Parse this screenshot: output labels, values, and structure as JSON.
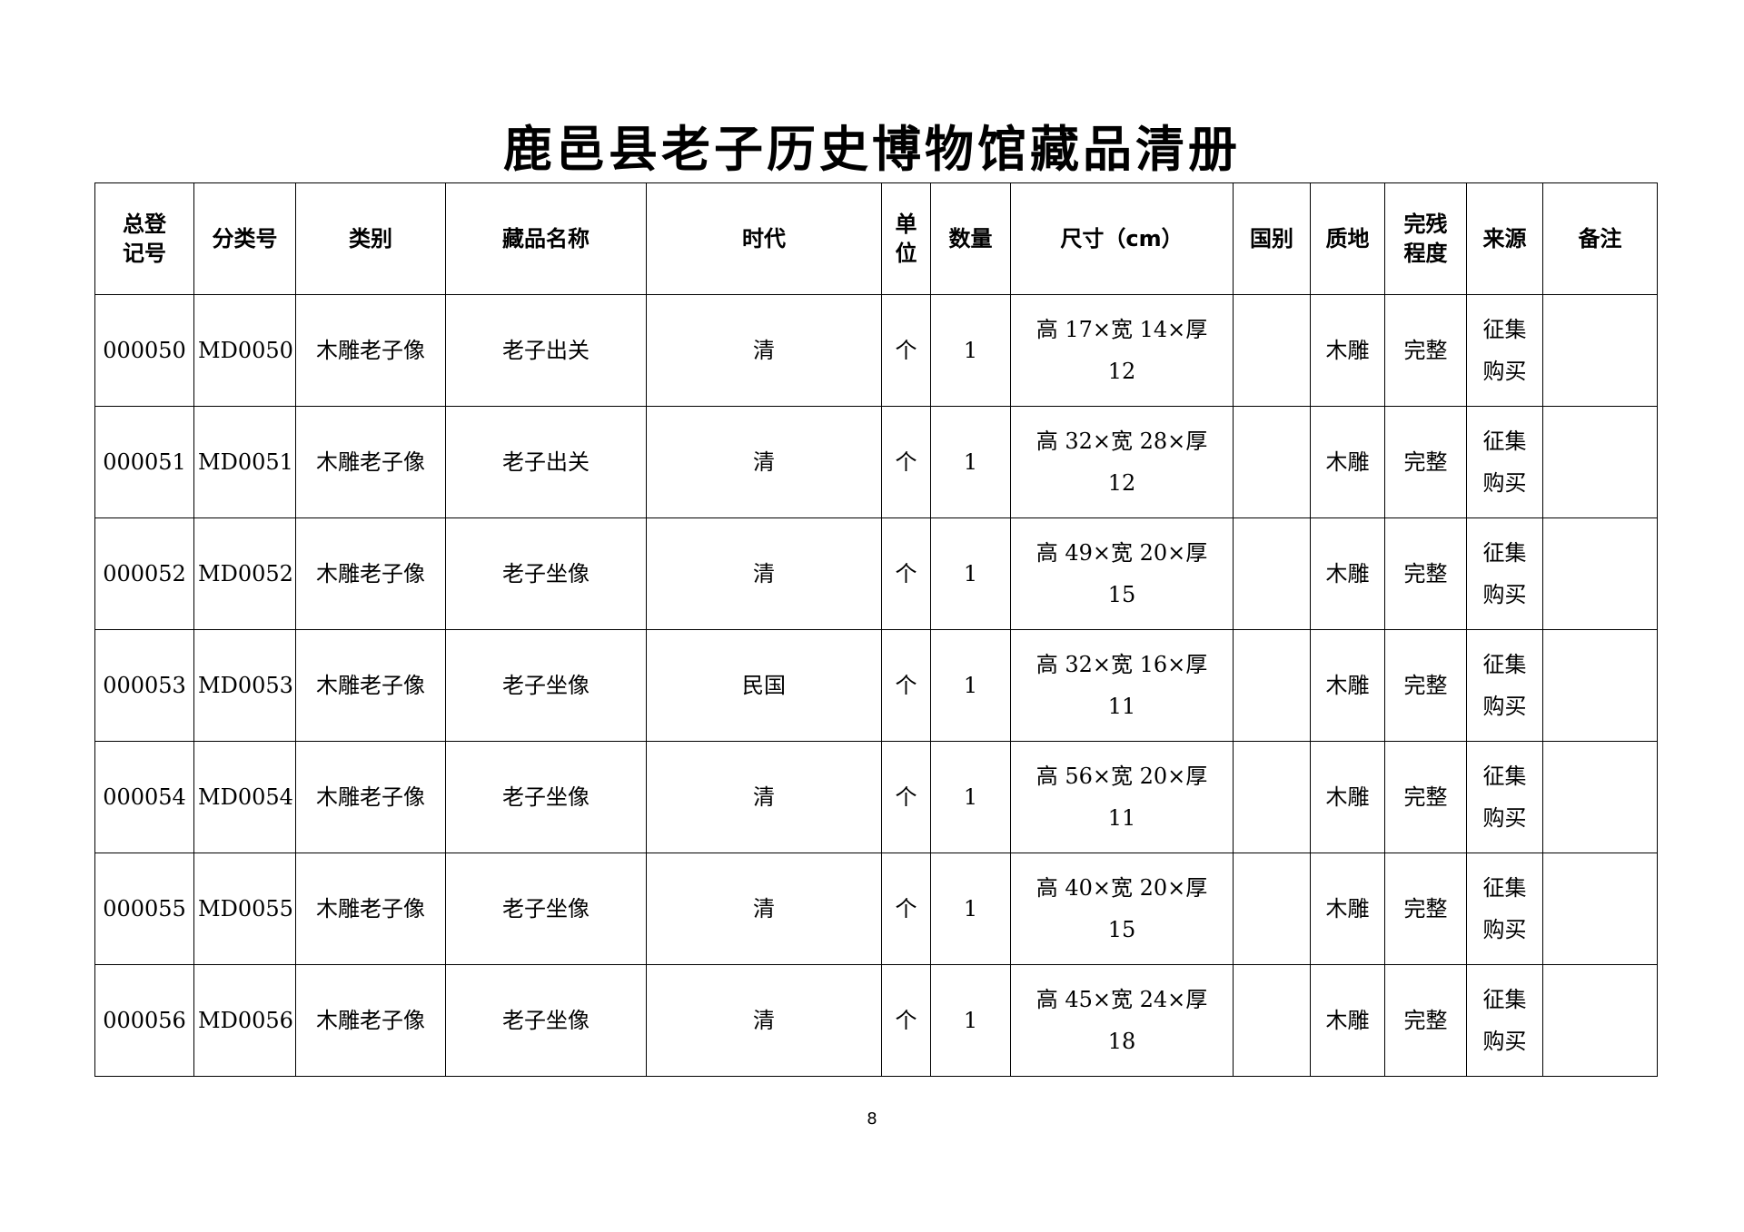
{
  "title": "鹿邑县老子历史博物馆藏品清册",
  "headers": {
    "reg_no": "总登记号",
    "class_no": "分类号",
    "category": "类别",
    "name": "藏品名称",
    "era": "时代",
    "unit": "单位",
    "qty": "数量",
    "size": "尺寸（cm）",
    "country": "国别",
    "material": "质地",
    "condition": "完残程度",
    "source": "来源",
    "remark": "备注"
  },
  "rows": [
    {
      "reg_no": "000050",
      "class_no": "MD0050",
      "category": "木雕老子像",
      "name": "老子出关",
      "era": "清",
      "unit": "个",
      "qty": "1",
      "size": "高 17×宽 14×厚 12",
      "country": "",
      "material": "木雕",
      "condition": "完整",
      "source": "征集购买",
      "remark": ""
    },
    {
      "reg_no": "000051",
      "class_no": "MD0051",
      "category": "木雕老子像",
      "name": "老子出关",
      "era": "清",
      "unit": "个",
      "qty": "1",
      "size": "高 32×宽 28×厚 12",
      "country": "",
      "material": "木雕",
      "condition": "完整",
      "source": "征集购买",
      "remark": ""
    },
    {
      "reg_no": "000052",
      "class_no": "MD0052",
      "category": "木雕老子像",
      "name": "老子坐像",
      "era": "清",
      "unit": "个",
      "qty": "1",
      "size": "高 49×宽 20×厚 15",
      "country": "",
      "material": "木雕",
      "condition": "完整",
      "source": "征集购买",
      "remark": ""
    },
    {
      "reg_no": "000053",
      "class_no": "MD0053",
      "category": "木雕老子像",
      "name": "老子坐像",
      "era": "民国",
      "unit": "个",
      "qty": "1",
      "size": "高 32×宽 16×厚 11",
      "country": "",
      "material": "木雕",
      "condition": "完整",
      "source": "征集购买",
      "remark": ""
    },
    {
      "reg_no": "000054",
      "class_no": "MD0054",
      "category": "木雕老子像",
      "name": "老子坐像",
      "era": "清",
      "unit": "个",
      "qty": "1",
      "size": "高 56×宽 20×厚 11",
      "country": "",
      "material": "木雕",
      "condition": "完整",
      "source": "征集购买",
      "remark": ""
    },
    {
      "reg_no": "000055",
      "class_no": "MD0055",
      "category": "木雕老子像",
      "name": "老子坐像",
      "era": "清",
      "unit": "个",
      "qty": "1",
      "size": "高 40×宽 20×厚 15",
      "country": "",
      "material": "木雕",
      "condition": "完整",
      "source": "征集购买",
      "remark": ""
    },
    {
      "reg_no": "000056",
      "class_no": "MD0056",
      "category": "木雕老子像",
      "name": "老子坐像",
      "era": "清",
      "unit": "个",
      "qty": "1",
      "size": "高 45×宽 24×厚 18",
      "country": "",
      "material": "木雕",
      "condition": "完整",
      "source": "征集购买",
      "remark": ""
    }
  ],
  "page_number": "8"
}
